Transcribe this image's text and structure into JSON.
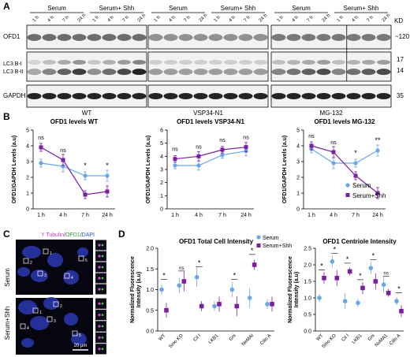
{
  "panelA": {
    "letter": "A",
    "header": {
      "serum": "Serum",
      "shh": "Serum+ Shh"
    },
    "times": [
      "1 h",
      "4 h",
      "7 h",
      "24 h",
      "1 h",
      "4 h",
      "7 h",
      "24 h"
    ],
    "rowLabels": {
      "ofd1": "OFD1",
      "lc3": "LC3 B-I\nLC3 B-II",
      "gapdh": "GAPDH"
    },
    "kdLabel": "KD",
    "kd": {
      "ofd1": "~120",
      "lc3a": "17",
      "lc3b": "14",
      "gapdh": "35"
    },
    "blots": [
      {
        "name": "WT"
      },
      {
        "name": "VSP34-N1"
      },
      {
        "name": "MG-132"
      }
    ]
  },
  "panelB": {
    "letter": "B",
    "legend": {
      "serum": "Serum",
      "shh": "Serum+Shh"
    },
    "colors": {
      "serum": "#6aa6e8",
      "shh": "#7a1fa2"
    }
  },
  "panelC": {
    "letter": "C",
    "stain_tubulin": "Y Tubulin",
    "stain_ofd1": "OFD1",
    "stain_dapi": "DAPI",
    "rowSerum": "Serum",
    "rowShh": "Serum+Shh",
    "scale": "20 μm",
    "cellNumbers": [
      "1",
      "2",
      "3",
      "4",
      "5"
    ]
  },
  "panelD": {
    "letter": "D",
    "legend": {
      "serum": "Serum",
      "shh": "Serum+Shh"
    }
  },
  "chart_data": [
    {
      "type": "line",
      "title": "OFD1 levels WT",
      "ylabel": "OFD1/GAPDH Levels (a.u)",
      "categories": [
        "1 h",
        "4 h",
        "7 h",
        "24 h"
      ],
      "ylim": [
        0,
        5
      ],
      "yticks": [
        "0",
        "1",
        "2",
        "3",
        "4",
        "5"
      ],
      "series": [
        {
          "name": "Serum",
          "values": [
            2.9,
            2.7,
            2.1,
            2.1
          ]
        },
        {
          "name": "Serum+Shh",
          "values": [
            3.9,
            3.1,
            0.9,
            1.1
          ]
        }
      ],
      "annotations": [
        "ns",
        "ns",
        "*",
        "*"
      ]
    },
    {
      "type": "line",
      "title": "OFD1 levels VSP34-N1",
      "ylabel": "OFD1/GAPDH Levels (a.u)",
      "categories": [
        "1 h",
        "4 h",
        "7 h",
        "24 h"
      ],
      "ylim": [
        0,
        6
      ],
      "yticks": [
        "0",
        "1",
        "2",
        "3",
        "4",
        "5",
        "6"
      ],
      "series": [
        {
          "name": "Serum",
          "values": [
            3.3,
            3.3,
            4.1,
            4.4
          ]
        },
        {
          "name": "Serum+Shh",
          "values": [
            3.8,
            4.0,
            4.5,
            4.7
          ]
        }
      ],
      "annotations": [
        "ns",
        "ns",
        "ns",
        "ns"
      ]
    },
    {
      "type": "line",
      "title": "OFD1 levels MG-132",
      "ylabel": "OFD1/GAPDH Levels (a.u)",
      "categories": [
        "1 h",
        "4 h",
        "7 h",
        "24 h"
      ],
      "ylim": [
        0,
        5
      ],
      "yticks": [
        "0",
        "1",
        "2",
        "3",
        "4",
        "5"
      ],
      "series": [
        {
          "name": "Serum",
          "values": [
            3.8,
            2.9,
            2.9,
            3.7
          ]
        },
        {
          "name": "Serum+Shh",
          "values": [
            4.0,
            3.6,
            2.1,
            1.0
          ]
        }
      ],
      "annotations": [
        "ns",
        "ns",
        "*",
        "**"
      ]
    },
    {
      "type": "scatter",
      "title": "OFD1 Total Cell Intensity",
      "ylabel": "Normalized Fluorescence\nIntensity (a.u)",
      "categories": [
        "WT",
        "Smo KO",
        "Cil I",
        "LKB1",
        "Gni",
        "NeMAI",
        "Cilio A"
      ],
      "ylim": [
        0,
        2.0
      ],
      "yticks": [
        "0.0",
        "0.5",
        "1.0",
        "1.5",
        "2.0"
      ],
      "series": [
        {
          "name": "Serum",
          "values": [
            1.0,
            1.1,
            1.3,
            0.6,
            1.0,
            0.8,
            0.65
          ]
        },
        {
          "name": "Serum+Shh",
          "values": [
            0.5,
            1.2,
            0.6,
            0.65,
            0.6,
            1.6,
            0.65
          ]
        }
      ],
      "annotations": [
        "*",
        "ns",
        "*",
        "",
        "*",
        "*",
        ""
      ]
    },
    {
      "type": "scatter",
      "title": "OFD1 Centriole Intensity",
      "ylabel": "Normalized Fluorescence\nIntensity (a.u)",
      "categories": [
        "WT",
        "Smo KO",
        "Cil I",
        "LKB1",
        "Gni",
        "NuMA1",
        "Cilio A"
      ],
      "ylim": [
        0,
        2.5
      ],
      "yticks": [
        "0.0",
        "0.5",
        "1.0",
        "1.5",
        "2.0",
        "2.5"
      ],
      "series": [
        {
          "name": "Serum",
          "values": [
            1.0,
            2.1,
            0.9,
            0.85,
            1.9,
            1.4,
            0.9
          ]
        },
        {
          "name": "Serum+Shh",
          "values": [
            1.6,
            1.6,
            1.8,
            1.3,
            1.5,
            1.15,
            0.6
          ]
        }
      ],
      "annotations": [
        "*",
        "*",
        "*",
        "*",
        "*",
        "ns",
        "*"
      ]
    }
  ]
}
